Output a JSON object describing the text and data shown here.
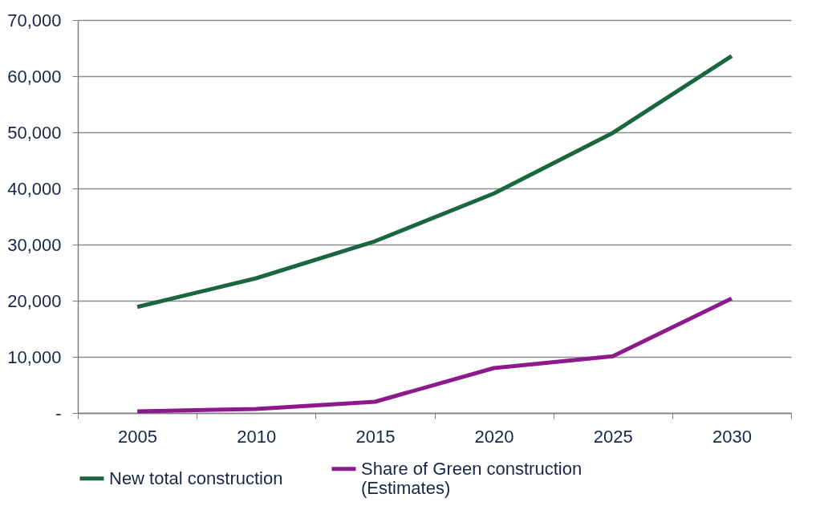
{
  "chart_data": {
    "type": "line",
    "categories": [
      "2005",
      "2010",
      "2015",
      "2020",
      "2025",
      "2030"
    ],
    "series": [
      {
        "name": "New total construction",
        "color": "#1a6640",
        "values": [
          18900,
          24000,
          30600,
          39100,
          49900,
          63600
        ]
      },
      {
        "name": "Share of Green construction (Estimates)",
        "color": "#8c1a8c",
        "values": [
          300,
          700,
          2000,
          8000,
          10100,
          20400
        ]
      }
    ],
    "ylim": [
      0,
      70000
    ],
    "yticks": [
      {
        "value": 0,
        "label": "-"
      },
      {
        "value": 10000,
        "label": "10,000"
      },
      {
        "value": 20000,
        "label": "20,000"
      },
      {
        "value": 30000,
        "label": "30,000"
      },
      {
        "value": 40000,
        "label": "40,000"
      },
      {
        "value": 50000,
        "label": "50,000"
      },
      {
        "value": 60000,
        "label": "60,000"
      },
      {
        "value": 70000,
        "label": "70,000"
      }
    ],
    "grid": "y",
    "legend": "bottom",
    "line_style": "solid",
    "marker": "none"
  }
}
